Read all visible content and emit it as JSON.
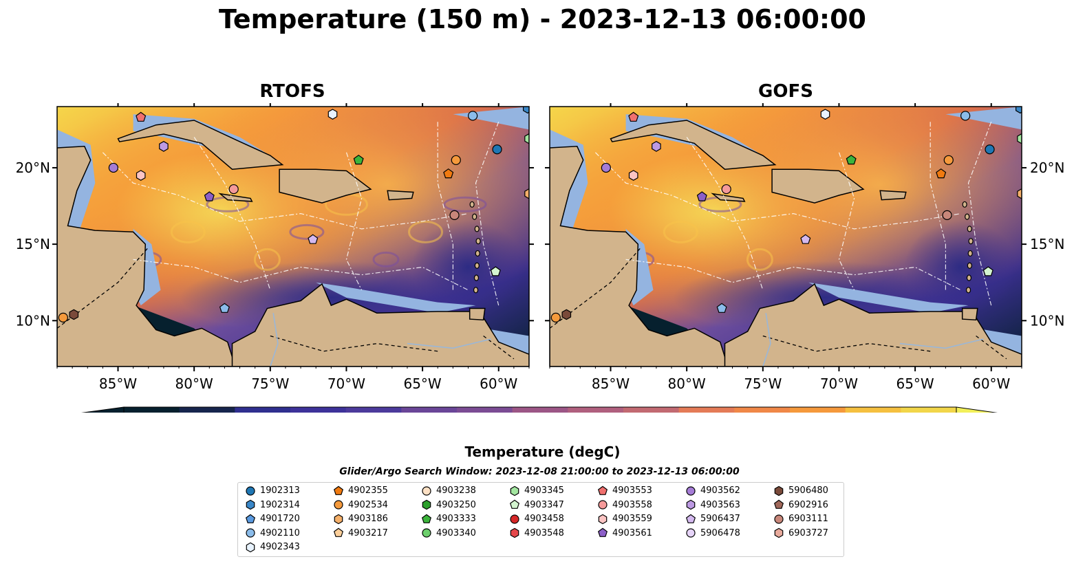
{
  "title": "Temperature (150 m) - 2023-12-13 06:00:00",
  "panels": [
    {
      "title": "RTOFS"
    },
    {
      "title": "GOFS"
    }
  ],
  "map": {
    "lon_ticks": [
      "85°W",
      "80°W",
      "75°W",
      "70°W",
      "65°W",
      "60°W"
    ],
    "lat_ticks": [
      "20°N",
      "15°N",
      "10°N"
    ],
    "lon_range": [
      -89,
      -58
    ],
    "lat_range": [
      7,
      24
    ],
    "colors": {
      "land": "#d2b48c",
      "shallow": "#94b4e0",
      "coast": "#000000",
      "contour": "#ffffff"
    }
  },
  "colorbar": {
    "label": "Temperature (degC)",
    "min": 17,
    "max": 24.5,
    "ticks": [
      "17",
      "18",
      "19",
      "20",
      "21",
      "22",
      "23",
      "24"
    ],
    "extend": "both",
    "colormap": "thermal"
  },
  "search_window": "Glider/Argo Search Window: 2023-12-08 21:00:00 to 2023-12-13 06:00:00",
  "legend": {
    "columns": [
      [
        {
          "id": "1902313",
          "marker": "circle",
          "color": "#1f77b4"
        },
        {
          "id": "1902314",
          "marker": "hexagon",
          "color": "#3a87c8"
        },
        {
          "id": "4901720",
          "marker": "pentagon",
          "color": "#5a9ae0"
        },
        {
          "id": "4902110",
          "marker": "circle",
          "color": "#8bbcea"
        },
        {
          "id": "4902343",
          "marker": "hexagon",
          "color": "#e8f3ff"
        }
      ],
      [
        {
          "id": "4902355",
          "marker": "pentagon",
          "color": "#f07a10"
        },
        {
          "id": "4902534",
          "marker": "circle",
          "color": "#f59a3c"
        },
        {
          "id": "4903186",
          "marker": "hexagon",
          "color": "#f5b06a"
        },
        {
          "id": "4903217",
          "marker": "pentagon",
          "color": "#fccf9a"
        }
      ],
      [
        {
          "id": "4903238",
          "marker": "circle",
          "color": "#fde0c4"
        },
        {
          "id": "4903250",
          "marker": "hexagon",
          "color": "#2ca02c"
        },
        {
          "id": "4903333",
          "marker": "pentagon",
          "color": "#3cb43c"
        },
        {
          "id": "4903340",
          "marker": "circle",
          "color": "#6ccf6c"
        }
      ],
      [
        {
          "id": "4903345",
          "marker": "hexagon",
          "color": "#a3e6a0"
        },
        {
          "id": "4903347",
          "marker": "pentagon",
          "color": "#d4f5d0"
        },
        {
          "id": "4903458",
          "marker": "circle",
          "color": "#d62728"
        },
        {
          "id": "4903548",
          "marker": "hexagon",
          "color": "#e5474a"
        }
      ],
      [
        {
          "id": "4903553",
          "marker": "pentagon",
          "color": "#f0706e"
        },
        {
          "id": "4903558",
          "marker": "circle",
          "color": "#f59a9a"
        },
        {
          "id": "4903559",
          "marker": "hexagon",
          "color": "#fbc4c3"
        },
        {
          "id": "4903561",
          "marker": "pentagon",
          "color": "#8c5fc8"
        }
      ],
      [
        {
          "id": "4903562",
          "marker": "circle",
          "color": "#a57cd6"
        },
        {
          "id": "4903563",
          "marker": "hexagon",
          "color": "#bd9ae3"
        },
        {
          "id": "5906437",
          "marker": "pentagon",
          "color": "#d4b9ef"
        },
        {
          "id": "5906478",
          "marker": "circle",
          "color": "#e6d4f8"
        }
      ],
      [
        {
          "id": "5906480",
          "marker": "hexagon",
          "color": "#7a4a3a"
        },
        {
          "id": "6902916",
          "marker": "pentagon",
          "color": "#a0685a"
        },
        {
          "id": "6903111",
          "marker": "circle",
          "color": "#c8877a"
        },
        {
          "id": "6903727",
          "marker": "hexagon",
          "color": "#e8aa9c"
        }
      ]
    ]
  },
  "floats_on_map": [
    {
      "lon": -85.3,
      "lat": 20.0,
      "marker": "circle",
      "color": "#a57cd6"
    },
    {
      "lon": -83.5,
      "lat": 19.5,
      "marker": "hexagon",
      "color": "#fbc4c3"
    },
    {
      "lon": -82.0,
      "lat": 21.4,
      "marker": "hexagon",
      "color": "#bd9ae3"
    },
    {
      "lon": -83.5,
      "lat": 23.3,
      "marker": "pentagon",
      "color": "#f0706e"
    },
    {
      "lon": -79.0,
      "lat": 18.1,
      "marker": "pentagon",
      "color": "#8c5fc8"
    },
    {
      "lon": -77.4,
      "lat": 18.6,
      "marker": "circle",
      "color": "#f59a9a"
    },
    {
      "lon": -72.2,
      "lat": 15.3,
      "marker": "pentagon",
      "color": "#d4b9ef"
    },
    {
      "lon": -70.9,
      "lat": 23.5,
      "marker": "hexagon",
      "color": "#e8f3ff"
    },
    {
      "lon": -69.2,
      "lat": 20.5,
      "marker": "pentagon",
      "color": "#3cb43c"
    },
    {
      "lon": -62.8,
      "lat": 20.5,
      "marker": "circle",
      "color": "#f59a3c"
    },
    {
      "lon": -63.3,
      "lat": 19.6,
      "marker": "pentagon",
      "color": "#f07a10"
    },
    {
      "lon": -62.9,
      "lat": 16.9,
      "marker": "circle",
      "color": "#c8877a"
    },
    {
      "lon": -61.7,
      "lat": 23.4,
      "marker": "circle",
      "color": "#8bbcea"
    },
    {
      "lon": -60.1,
      "lat": 21.2,
      "marker": "circle",
      "color": "#1f77b4"
    },
    {
      "lon": -58.1,
      "lat": 23.9,
      "marker": "hexagon",
      "color": "#3a87c8"
    },
    {
      "lon": -58.0,
      "lat": 21.9,
      "marker": "hexagon",
      "color": "#a3e6a0"
    },
    {
      "lon": -58.0,
      "lat": 18.3,
      "marker": "hexagon",
      "color": "#f5b06a"
    },
    {
      "lon": -60.2,
      "lat": 13.2,
      "marker": "pentagon",
      "color": "#d4f5d0"
    },
    {
      "lon": -88.6,
      "lat": 10.2,
      "marker": "circle",
      "color": "#f59a3c"
    },
    {
      "lon": -87.9,
      "lat": 10.4,
      "marker": "hexagon",
      "color": "#7a4a3a"
    }
  ],
  "floats_rtofs_only": [
    {
      "lon": -78.0,
      "lat": 10.8,
      "marker": "pentagon",
      "color": "#8bbcea"
    }
  ],
  "floats_gofs_only": [
    {
      "lon": -77.7,
      "lat": 10.8,
      "marker": "pentagon",
      "color": "#8bbcea"
    }
  ]
}
